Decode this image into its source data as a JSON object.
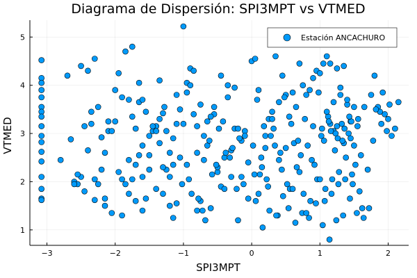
{
  "chart_data": {
    "type": "scatter",
    "title": "Diagrama de Dispersión: SPI3MPT vs VTMED",
    "xlabel": "SPI3MPT",
    "ylabel": "VTMED",
    "xlim": [
      -3.25,
      2.3
    ],
    "ylim": [
      0.68,
      5.35
    ],
    "xticks": [
      -3,
      -2,
      -1,
      0,
      1,
      2
    ],
    "yticks": [
      1,
      2,
      3,
      4,
      5
    ],
    "xtick_labels": [
      "−3",
      "−2",
      "−1",
      "0",
      "1",
      "2"
    ],
    "ytick_labels": [
      "1",
      "2",
      "3",
      "4",
      "5"
    ],
    "grid": true,
    "legend_position": "top-right",
    "series": [
      {
        "name": "Estación ANCACHURO",
        "color": "#009AFA",
        "x": [
          -3.08,
          -3.08,
          -3.08,
          -3.08,
          -3.08,
          -3.08,
          -3.08,
          -3.08,
          -3.08,
          -3.08,
          -3.08,
          -3.08,
          -3.08,
          -3.08,
          -3.08,
          -3.08,
          -3.08,
          -2.8,
          -2.7,
          -2.65,
          -2.6,
          -2.55,
          -2.5,
          -2.45,
          -2.4,
          -2.35,
          -2.3,
          -2.25,
          -2.2,
          -2.15,
          -2.1,
          -2.05,
          -2.5,
          -2.3,
          -2.2,
          -2.1,
          -2.45,
          -2.3,
          -2.15,
          -2.05,
          -2.6,
          -2.4,
          -2.35,
          -2.25,
          -2.55,
          -2.15,
          -2.0,
          -1.95,
          -1.9,
          -1.85,
          -1.8,
          -1.75,
          -1.7,
          -1.65,
          -1.6,
          -1.55,
          -1.5,
          -1.45,
          -1.4,
          -1.35,
          -1.3,
          -1.25,
          -1.2,
          -1.15,
          -1.1,
          -1.05,
          -1.9,
          -1.8,
          -1.7,
          -1.6,
          -1.5,
          -1.4,
          -1.3,
          -1.2,
          -1.1,
          -1.95,
          -1.85,
          -1.75,
          -1.65,
          -1.55,
          -1.45,
          -1.35,
          -1.25,
          -1.15,
          -1.05,
          -2.0,
          -1.9,
          -1.8,
          -1.7,
          -1.6,
          -1.5,
          -1.4,
          -1.3,
          -1.2,
          -1.1,
          -1.75,
          -1.65,
          -1.6,
          -1.35,
          -1.28,
          -1.15,
          -1.0,
          -0.95,
          -0.9,
          -0.85,
          -0.8,
          -0.75,
          -0.7,
          -0.65,
          -0.6,
          -0.55,
          -0.5,
          -0.45,
          -0.4,
          -0.35,
          -0.3,
          -0.25,
          -0.2,
          -0.15,
          -0.1,
          -0.05,
          -0.95,
          -0.85,
          -0.75,
          -0.65,
          -0.55,
          -0.45,
          -0.35,
          -0.25,
          -0.15,
          -0.05,
          -0.9,
          -0.8,
          -0.7,
          -0.6,
          -0.5,
          -0.4,
          -0.3,
          -0.2,
          -0.1,
          -1.0,
          -0.92,
          -0.78,
          -0.62,
          -0.48,
          -0.32,
          -0.18,
          -0.88,
          -0.72,
          -0.58,
          -0.42,
          -0.28,
          -1.02,
          -0.8,
          -0.68,
          -0.52,
          -0.38,
          -0.22,
          -0.12,
          -0.95,
          0.0,
          0.05,
          0.1,
          0.15,
          0.2,
          0.25,
          0.3,
          0.35,
          0.4,
          0.45,
          0.5,
          0.55,
          0.6,
          0.65,
          0.7,
          0.75,
          0.8,
          0.85,
          0.9,
          0.95,
          0.02,
          0.12,
          0.22,
          0.32,
          0.42,
          0.52,
          0.62,
          0.72,
          0.82,
          0.92,
          0.08,
          0.18,
          0.28,
          0.38,
          0.48,
          0.58,
          0.68,
          0.78,
          0.88,
          0.98,
          0.04,
          0.14,
          0.24,
          0.34,
          0.44,
          0.54,
          0.64,
          0.74,
          0.84,
          0.94,
          0.06,
          0.16,
          0.26,
          0.36,
          0.46,
          0.56,
          0.66,
          0.76,
          0.86,
          0.96,
          0.1,
          0.3,
          0.5,
          0.7,
          0.9,
          0.2,
          0.4,
          0.6,
          0.8,
          1.0,
          1.05,
          1.1,
          1.15,
          1.2,
          1.25,
          1.3,
          1.35,
          1.4,
          1.45,
          1.5,
          1.55,
          1.6,
          1.65,
          1.7,
          1.02,
          1.12,
          1.22,
          1.32,
          1.42,
          1.52,
          1.62,
          1.08,
          1.18,
          1.28,
          1.38,
          1.48,
          1.58,
          1.04,
          1.14,
          1.24,
          1.34,
          1.44,
          1.54,
          1.64,
          1.06,
          1.16,
          1.26,
          1.36,
          1.46,
          1.56,
          1.1,
          1.2,
          1.3,
          1.4,
          1.5,
          1.0,
          1.15,
          1.25,
          1.35,
          1.45,
          1.03,
          1.13,
          1.23,
          1.33,
          1.43,
          1.07,
          1.17,
          1.27,
          1.37,
          1.47,
          1.75,
          1.8,
          1.85,
          1.9,
          1.95,
          2.0,
          2.05,
          2.1,
          2.15,
          1.78,
          1.88,
          1.98,
          1.72,
          1.82,
          1.92,
          2.02
        ],
        "y": [
          4.52,
          4.15,
          4.05,
          3.9,
          3.75,
          3.55,
          3.45,
          3.35,
          3.15,
          2.95,
          2.82,
          2.62,
          2.42,
          2.1,
          1.85,
          1.65,
          1.62,
          2.45,
          4.2,
          2.88,
          2.0,
          1.95,
          2.1,
          1.8,
          4.3,
          3.2,
          2.05,
          1.95,
          2.25,
          2.6,
          3.05,
          1.35,
          4.4,
          1.62,
          2.92,
          3.25,
          3.15,
          4.55,
          1.65,
          3.05,
          1.95,
          2.65,
          3.45,
          3.55,
          2.15,
          1.5,
          3.25,
          2.2,
          3.75,
          4.7,
          3.7,
          2.05,
          3.1,
          3.65,
          2.75,
          3.45,
          2.95,
          3.05,
          3.15,
          3.3,
          3.42,
          2.25,
          2.6,
          2.9,
          3.2,
          3.5,
          2.05,
          2.45,
          2.35,
          2.1,
          2.55,
          1.85,
          2.3,
          2.1,
          3.8,
          4.25,
          1.95,
          3.35,
          2.55,
          1.65,
          3.15,
          2.8,
          3.05,
          2.35,
          2.5,
          3.9,
          1.3,
          1.75,
          1.6,
          1.4,
          2.25,
          3.05,
          1.75,
          1.5,
          1.55,
          4.8,
          4.05,
          3.7,
          4.1,
          3.55,
          1.25,
          5.22,
          3.85,
          4.35,
          4.3,
          3.15,
          1.6,
          2.95,
          3.25,
          1.45,
          3.4,
          2.2,
          1.9,
          2.5,
          3.75,
          2.65,
          3.1,
          1.2,
          2.85,
          3.05,
          2.4,
          4.05,
          3.4,
          3.6,
          2.75,
          3.55,
          4.2,
          4.0,
          3.95,
          2.1,
          1.65,
          4.0,
          2.6,
          2.45,
          3.35,
          2.3,
          1.85,
          2.1,
          3.1,
          2.95,
          3.2,
          2.05,
          1.65,
          2.85,
          3.1,
          2.5,
          2.9,
          1.75,
          1.4,
          2.15,
          3.25,
          2.7,
          1.95,
          1.4,
          1.2,
          2.35,
          2.6,
          1.85,
          1.95,
          2.35,
          4.5,
          4.55,
          1.75,
          2.3,
          2.95,
          3.3,
          3.45,
          4.6,
          3.65,
          4.2,
          3.8,
          3.35,
          3.85,
          3.55,
          4.45,
          4.0,
          3.8,
          3.9,
          4.15,
          4.3,
          2.75,
          2.15,
          2.05,
          3.1,
          2.6,
          1.95,
          2.8,
          2.55,
          2.75,
          2.35,
          3.7,
          3.15,
          2.95,
          1.3,
          3.75,
          3.2,
          2.85,
          3.3,
          2.45,
          3.85,
          2.15,
          2.5,
          1.9,
          2.75,
          2.25,
          1.45,
          1.15,
          1.35,
          1.25,
          1.55,
          1.6,
          1.05,
          1.4,
          1.3,
          1.7,
          1.85,
          2.3,
          1.75,
          1.6,
          2.05,
          3.9,
          3.3,
          2.7,
          2.2,
          3.15,
          2.7,
          2.45,
          1.85,
          1.35,
          4.25,
          4.45,
          4.6,
          4.45,
          3.05,
          4.35,
          3.8,
          4.4,
          3.6,
          3.25,
          2.75,
          3.15,
          2.55,
          3.55,
          2.25,
          2.95,
          3.35,
          2.65,
          3.2,
          3.0,
          2.35,
          1.45,
          1.85,
          2.05,
          2.2,
          2.5,
          1.95,
          1.8,
          1.1,
          0.8,
          1.2,
          1.3,
          1.65,
          1.35,
          1.25,
          2.85,
          3.05,
          2.9,
          3.1,
          3.25,
          3.3,
          3.45,
          3.65,
          3.95,
          3.7,
          3.55,
          2.05,
          3.2,
          3.15,
          2.8,
          2.9,
          3.1,
          3.25,
          3.0,
          2.85,
          3.35,
          1.6,
          1.75,
          1.95,
          2.05,
          2.15,
          3.8,
          4.2,
          3.55,
          3.2,
          3.4,
          3.3,
          2.95,
          3.1,
          3.65,
          2.85,
          3.45,
          3.05,
          1.45,
          3.5,
          3.85,
          3.6
        ]
      }
    ]
  }
}
